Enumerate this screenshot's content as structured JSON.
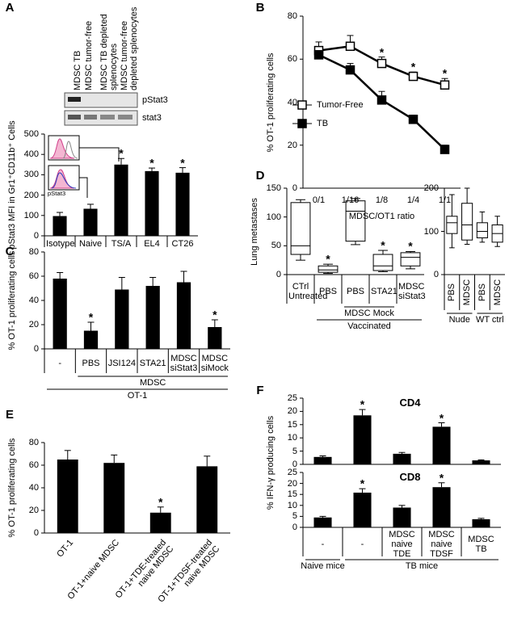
{
  "chart_data": [
    {
      "type": "bar",
      "panel": "A",
      "ylabel": "pStat3 MFI in Gr1⁺CD11b⁺ Cells",
      "blot": {
        "lanes": [
          "MDSC TB",
          "MDSC tumor-free",
          "MDSC TB depleted splenocytes",
          "MDSC tumor-free depleted splenocytes"
        ],
        "bands": [
          "pStat3",
          "stat3"
        ]
      },
      "inset_label": "pStat3",
      "categories": [
        "Isotype",
        "Naive",
        "TS/A",
        "EL4",
        "CT26"
      ],
      "values": [
        97,
        133,
        350,
        318,
        310
      ],
      "errors": [
        18,
        22,
        30,
        15,
        25
      ],
      "significance": [
        null,
        null,
        "*",
        "*",
        "*"
      ],
      "color": "#000000",
      "ylim": [
        0,
        500
      ],
      "yticks": [
        0,
        100,
        200,
        300,
        400,
        500
      ]
    },
    {
      "type": "line",
      "panel": "B",
      "ylabel": "% OT-1 proliferating cells",
      "xlabel": "MDSC/OT1 ratio",
      "categories": [
        "0/1",
        "1/16",
        "1/8",
        "1/4",
        "1/1"
      ],
      "series": [
        {
          "name": "Tumor-Free",
          "color": "#000000",
          "marker_fill": "#ffffff",
          "values": [
            64,
            66,
            58,
            52,
            48
          ],
          "errors": [
            4,
            5,
            3,
            2,
            3
          ]
        },
        {
          "name": "TB",
          "color": "#000000",
          "marker_fill": "#000000",
          "values": [
            62,
            55,
            41,
            32,
            18
          ],
          "errors": [
            2,
            3,
            4,
            2,
            2
          ]
        }
      ],
      "significance": [
        null,
        null,
        "*",
        "*",
        "*"
      ],
      "legend": "left",
      "ylim": [
        0,
        80
      ],
      "yticks": [
        0,
        20,
        40,
        60,
        80
      ]
    },
    {
      "type": "bar",
      "panel": "C",
      "ylabel": "% OT-1 proliferating cells",
      "categories": [
        "-",
        "PBS",
        "JSI124",
        "STA21",
        "MDSC siStat3",
        "MDSC siMock"
      ],
      "values": [
        58,
        15,
        49,
        52,
        55,
        18
      ],
      "errors": [
        5,
        7,
        10,
        7,
        9,
        6
      ],
      "significance": [
        null,
        "*",
        null,
        null,
        null,
        "*"
      ],
      "color": "#000000",
      "group_rows": [
        [
          {
            "label": "MDSC",
            "span": [
              1,
              5
            ]
          }
        ],
        [
          {
            "label": "OT-1",
            "span": [
              0,
              5
            ]
          }
        ]
      ],
      "ylim": [
        0,
        80
      ],
      "yticks": [
        0,
        20,
        40,
        60,
        80
      ]
    },
    {
      "type": "box",
      "panel": "D",
      "ylabel": "Lung metastases",
      "categories": [
        "CTrl Untreated",
        "PBS",
        "PBS",
        "STA21",
        "MDSC siStat3"
      ],
      "boxes": [
        [
          25,
          35,
          50,
          125,
          130
        ],
        [
          2,
          4,
          8,
          15,
          18
        ],
        [
          52,
          58,
          110,
          128,
          132
        ],
        [
          5,
          7,
          15,
          35,
          42
        ],
        [
          10,
          15,
          30,
          38,
          40
        ]
      ],
      "significance": [
        null,
        "*",
        null,
        "*",
        "*"
      ],
      "group_rows": [
        [
          {
            "label": "MDSC Mock",
            "span": [
              2,
              3
            ]
          }
        ],
        [
          {
            "label": "Vaccinated",
            "span": [
              1,
              4
            ]
          }
        ]
      ],
      "ylim": [
        0,
        150
      ],
      "yticks": [
        0,
        50,
        100,
        150
      ]
    },
    {
      "type": "box",
      "categories": [
        "PBS",
        "MDSC",
        "PBS",
        "MDSC"
      ],
      "boxes": [
        [
          62,
          95,
          120,
          135,
          185
        ],
        [
          70,
          80,
          115,
          165,
          200
        ],
        [
          75,
          85,
          100,
          120,
          145
        ],
        [
          65,
          75,
          95,
          115,
          135
        ]
      ],
      "group_rows": [
        [
          {
            "label": "Nude",
            "span": [
              0,
              1
            ]
          },
          {
            "label": "WT ctrl",
            "span": [
              2,
              3
            ]
          }
        ]
      ],
      "ylim": [
        0,
        200
      ],
      "yticks": [
        0,
        100,
        200
      ]
    },
    {
      "type": "bar",
      "panel": "E",
      "ylabel": "% OT-1 proliferating cells",
      "categories": [
        "OT-1",
        "OT-1+naive MDSC",
        "OT-1+TDE-treated naive MDSC",
        "OT-1+TDSF-treated naive MDSC"
      ],
      "values": [
        65,
        62,
        18,
        59
      ],
      "errors": [
        8,
        7,
        5,
        9
      ],
      "significance": [
        null,
        null,
        "*",
        null
      ],
      "color": "#000000",
      "ylim": [
        0,
        80
      ],
      "yticks": [
        0,
        20,
        40,
        60,
        80
      ]
    },
    {
      "type": "bar",
      "panel": "F",
      "title": "CD4",
      "ylabel": "% IFN-γ producing cells",
      "values": [
        2.8,
        18.5,
        4,
        14.2,
        1.5
      ],
      "errors": [
        0.4,
        2.2,
        0.5,
        1.5,
        0.2
      ],
      "significance": [
        null,
        "*",
        null,
        "*",
        null
      ],
      "color": "#000000",
      "ylim": [
        0,
        25
      ],
      "yticks": [
        0,
        5,
        10,
        15,
        20,
        25
      ]
    },
    {
      "type": "bar",
      "title": "CD8",
      "categories": [
        "-",
        "-",
        "MDSC naive TDE",
        "MDSC naive TDSF",
        "MDSC TB"
      ],
      "values": [
        4.5,
        15.8,
        9,
        18.3,
        3.7
      ],
      "errors": [
        0.5,
        1.8,
        1,
        2,
        0.4
      ],
      "significance": [
        null,
        "*",
        null,
        "*",
        null
      ],
      "color": "#000000",
      "group_rows": [
        [
          {
            "label": "Naive mice",
            "span": [
              0,
              0
            ]
          },
          {
            "label": "TB mice",
            "span": [
              1,
              4
            ]
          }
        ]
      ],
      "ylim": [
        0,
        25
      ],
      "yticks": [
        0,
        5,
        10,
        15,
        20,
        25
      ]
    }
  ]
}
